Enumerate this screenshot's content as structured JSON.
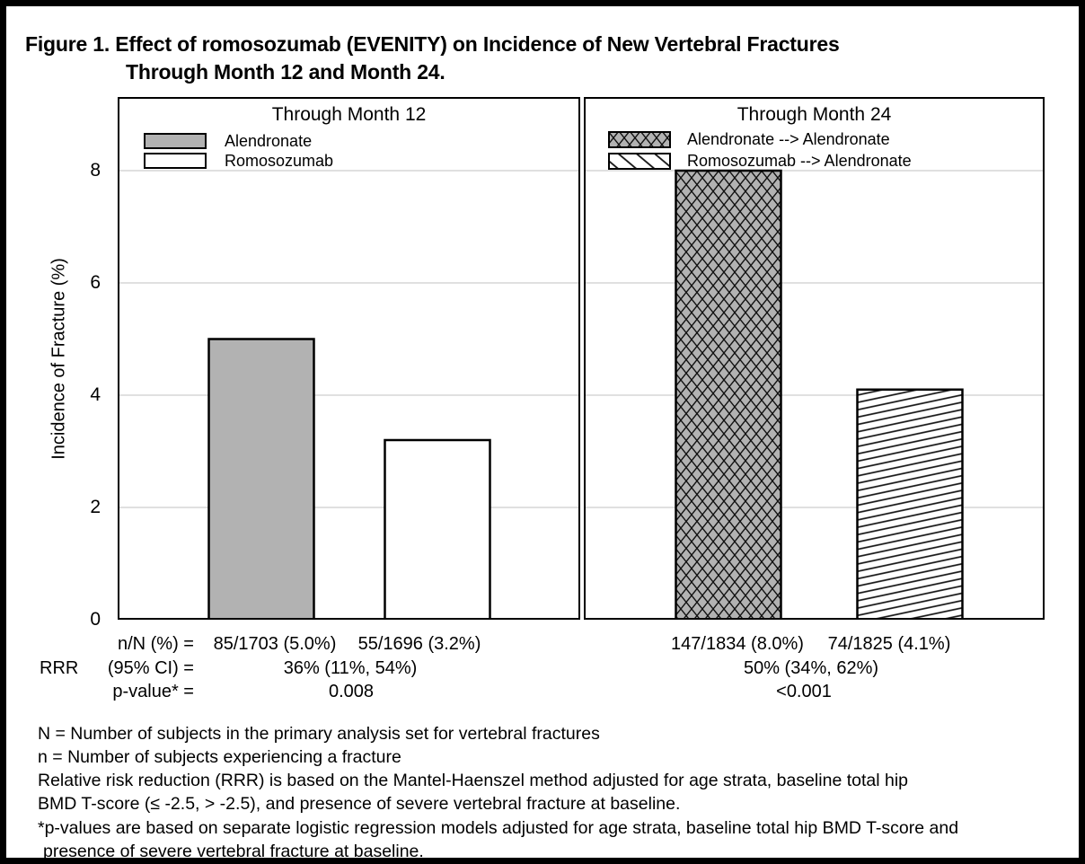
{
  "figure": {
    "title_line1": "Figure 1. Effect of romosozumab (EVENITY) on Incidence of New Vertebral Fractures",
    "title_line2": "Through Month 12 and Month 24."
  },
  "chart_data": {
    "type": "bar",
    "title": "Effect of romosozumab (EVENITY) on Incidence of New Vertebral Fractures Through Month 12 and Month 24",
    "xlabel": "",
    "ylabel": "Incidence of Fracture (%)",
    "ylim": [
      0,
      9.3
    ],
    "yticks": [
      0,
      2,
      4,
      6,
      8
    ],
    "grid": "horizontal light-gray lines at each tick",
    "legend_position": "top-left inside each panel",
    "panels": [
      {
        "title": "Through Month 12",
        "series": [
          {
            "name": "Alendronate",
            "value": 5.0,
            "fill": "solid-gray"
          },
          {
            "name": "Romosozumab",
            "value": 3.2,
            "fill": "solid-white"
          }
        ]
      },
      {
        "title": "Through Month 24",
        "series": [
          {
            "name": "Alendronate --> Alendronate",
            "value": 8.0,
            "fill": "gray-crosshatch"
          },
          {
            "name": "Romosozumab --> Alendronate",
            "value": 4.1,
            "fill": "diagonal-hatch"
          }
        ]
      }
    ]
  },
  "stats": {
    "row1_label": "n/N (%) =",
    "rrr_label": "RRR",
    "row2_label": "(95% CI) =",
    "row3_label": "p-value* =",
    "month12": {
      "values": [
        "85/1703 (5.0%)",
        "55/1696 (3.2%)"
      ],
      "rrr": "36% (11%, 54%)",
      "p_value": "0.008"
    },
    "month24": {
      "values": [
        "147/1834 (8.0%)",
        "74/1825 (4.1%)"
      ],
      "rrr": "50% (34%, 62%)",
      "p_value": "<0.001"
    }
  },
  "footnotes": {
    "line1": "N = Number of subjects in the primary analysis set for vertebral fractures",
    "line2": "n = Number of subjects experiencing a fracture",
    "line3": "Relative risk reduction (RRR) is based on the Mantel-Haenszel method adjusted for age strata, baseline total hip",
    "line4": "BMD T-score (≤ -2.5, > -2.5), and presence of severe vertebral fracture at baseline.",
    "line5": "*p-values are based on separate logistic regression models adjusted for age strata, baseline total hip BMD T-score and",
    "line6": "presence of severe vertebral fracture at baseline."
  },
  "colors": {
    "bar_gray": "#b2b2b2",
    "bar_white": "#ffffff",
    "gridline": "#e0e0e0",
    "border": "#000000",
    "hatch_line": "#111111"
  }
}
